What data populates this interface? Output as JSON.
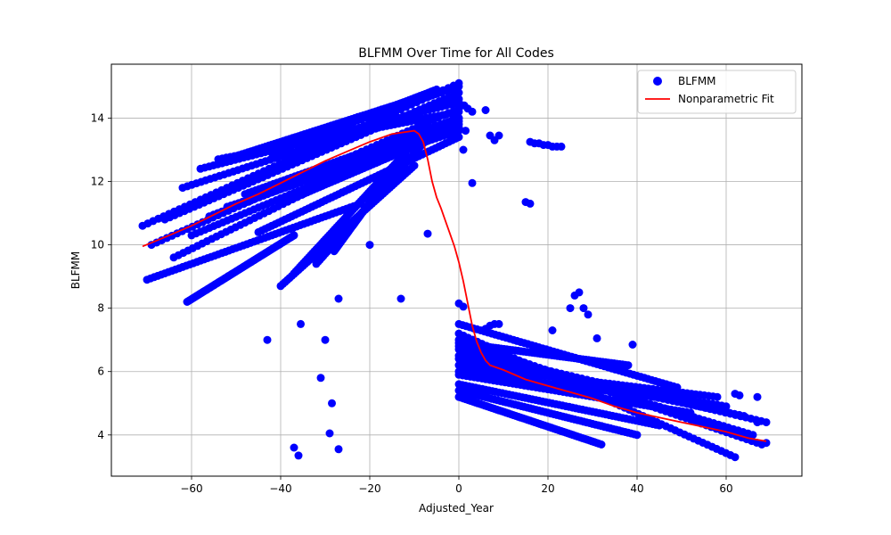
{
  "chart_data": {
    "type": "scatter",
    "title": "BLFMM Over Time for All Codes",
    "xlabel": "Adjusted_Year",
    "ylabel": "BLFMM",
    "xlim": [
      -78,
      77
    ],
    "ylim": [
      2.7,
      15.7
    ],
    "xticks": [
      -60,
      -40,
      -20,
      0,
      20,
      40,
      60
    ],
    "yticks": [
      4,
      6,
      8,
      10,
      12,
      14
    ],
    "grid": true,
    "legend": {
      "position": "top-right",
      "entries": [
        "BLFMM",
        "Nonparametric Fit"
      ]
    },
    "colors": {
      "scatter": "#0000ff",
      "fit": "#ff0000"
    },
    "series": [
      {
        "name": "BLFMM",
        "kind": "scatter",
        "bands_before": [
          {
            "x_start": -71,
            "y_start": 10.6,
            "x_end": 0,
            "y_end": 15.1
          },
          {
            "x_start": -69,
            "y_start": 10.0,
            "x_end": 0,
            "y_end": 14.3
          },
          {
            "x_start": -66,
            "y_start": 10.8,
            "x_end": 0,
            "y_end": 14.8
          },
          {
            "x_start": -64,
            "y_start": 9.6,
            "x_end": 0,
            "y_end": 14.0
          },
          {
            "x_start": -62,
            "y_start": 11.8,
            "x_end": 0,
            "y_end": 14.6
          },
          {
            "x_start": -60,
            "y_start": 10.3,
            "x_end": 0,
            "y_end": 13.8
          },
          {
            "x_start": -58,
            "y_start": 12.4,
            "x_end": 0,
            "y_end": 14.5
          },
          {
            "x_start": -56,
            "y_start": 10.9,
            "x_end": 0,
            "y_end": 13.9
          },
          {
            "x_start": -54,
            "y_start": 12.7,
            "x_end": 0,
            "y_end": 14.2
          },
          {
            "x_start": -52,
            "y_start": 11.2,
            "x_end": 0,
            "y_end": 13.6
          },
          {
            "x_start": -50,
            "y_start": 12.8,
            "x_end": -10,
            "y_end": 14.6
          },
          {
            "x_start": -48,
            "y_start": 11.6,
            "x_end": 0,
            "y_end": 14.0
          },
          {
            "x_start": -45,
            "y_start": 10.4,
            "x_end": 0,
            "y_end": 13.4
          },
          {
            "x_start": -42,
            "y_start": 12.9,
            "x_end": -5,
            "y_end": 14.9
          },
          {
            "x_start": -40,
            "y_start": 11.3,
            "x_end": 0,
            "y_end": 13.7
          },
          {
            "x_start": -36,
            "y_start": 13.3,
            "x_end": 0,
            "y_end": 15.0
          },
          {
            "x_start": -70,
            "y_start": 8.9,
            "x_end": -22,
            "y_end": 11.3
          },
          {
            "x_start": -61,
            "y_start": 8.2,
            "x_end": -37,
            "y_end": 10.3
          },
          {
            "x_start": -40,
            "y_start": 8.7,
            "x_end": -10,
            "y_end": 12.5
          },
          {
            "x_start": -37,
            "y_start": 9.1,
            "x_end": -12,
            "y_end": 12.9
          },
          {
            "x_start": -32,
            "y_start": 9.4,
            "x_end": -8,
            "y_end": 13.2
          },
          {
            "x_start": -28,
            "y_start": 9.8,
            "x_end": -15,
            "y_end": 12.3
          }
        ],
        "bands_after": [
          {
            "x_start": 0,
            "y_start": 7.2,
            "x_end": 62,
            "y_end": 3.3
          },
          {
            "x_start": 0,
            "y_start": 7.0,
            "x_end": 68,
            "y_end": 3.7
          },
          {
            "x_start": 0,
            "y_start": 6.8,
            "x_end": 66,
            "y_end": 4.0
          },
          {
            "x_start": 0,
            "y_start": 6.7,
            "x_end": 69,
            "y_end": 4.4
          },
          {
            "x_start": 0,
            "y_start": 6.5,
            "x_end": 64,
            "y_end": 4.6
          },
          {
            "x_start": 0,
            "y_start": 6.4,
            "x_end": 60,
            "y_end": 4.9
          },
          {
            "x_start": 0,
            "y_start": 6.2,
            "x_end": 58,
            "y_end": 5.2
          },
          {
            "x_start": 0,
            "y_start": 6.0,
            "x_end": 55,
            "y_end": 5.0
          },
          {
            "x_start": 0,
            "y_start": 5.9,
            "x_end": 52,
            "y_end": 4.7
          },
          {
            "x_start": 0,
            "y_start": 7.5,
            "x_end": 49,
            "y_end": 5.5
          },
          {
            "x_start": 0,
            "y_start": 5.6,
            "x_end": 45,
            "y_end": 4.3
          },
          {
            "x_start": 0,
            "y_start": 5.4,
            "x_end": 40,
            "y_end": 4.0
          },
          {
            "x_start": 0,
            "y_start": 5.2,
            "x_end": 32,
            "y_end": 3.7
          },
          {
            "x_start": 0,
            "y_start": 6.9,
            "x_end": 38,
            "y_end": 6.2
          }
        ],
        "points": [
          [
            -43,
            7.0
          ],
          [
            -35.5,
            7.5
          ],
          [
            -30,
            7.0
          ],
          [
            -31,
            5.8
          ],
          [
            -28.5,
            5.0
          ],
          [
            -29,
            4.05
          ],
          [
            -37,
            3.6
          ],
          [
            -36,
            3.35
          ],
          [
            -27,
            3.55
          ],
          [
            -27,
            8.3
          ],
          [
            -13,
            8.3
          ],
          [
            -7,
            10.35
          ],
          [
            -20,
            10.0
          ],
          [
            3,
            11.95
          ],
          [
            1,
            13.0
          ],
          [
            1.5,
            13.6
          ],
          [
            2,
            14.3
          ],
          [
            1.2,
            14.4
          ],
          [
            3,
            14.2
          ],
          [
            6,
            14.25
          ],
          [
            7,
            13.45
          ],
          [
            8,
            13.3
          ],
          [
            9,
            13.45
          ],
          [
            16,
            13.25
          ],
          [
            17,
            13.2
          ],
          [
            18,
            13.2
          ],
          [
            19,
            13.15
          ],
          [
            20,
            13.15
          ],
          [
            21,
            13.1
          ],
          [
            22,
            13.1
          ],
          [
            23,
            13.1
          ],
          [
            15,
            11.35
          ],
          [
            16,
            11.3
          ],
          [
            0,
            8.15
          ],
          [
            1,
            8.05
          ],
          [
            6,
            7.35
          ],
          [
            7,
            7.45
          ],
          [
            8,
            7.5
          ],
          [
            9,
            7.5
          ],
          [
            21,
            7.3
          ],
          [
            25,
            8.0
          ],
          [
            26,
            8.4
          ],
          [
            27,
            8.5
          ],
          [
            28,
            8.0
          ],
          [
            29,
            7.8
          ],
          [
            31,
            7.05
          ],
          [
            39,
            6.85
          ],
          [
            67,
            5.2
          ],
          [
            62,
            5.3
          ],
          [
            63,
            5.25
          ],
          [
            69,
            3.75
          ],
          [
            67,
            4.4
          ]
        ]
      },
      {
        "name": "Nonparametric Fit",
        "kind": "line",
        "points": [
          [
            -71,
            9.95
          ],
          [
            -65,
            10.3
          ],
          [
            -60,
            10.6
          ],
          [
            -55,
            10.95
          ],
          [
            -50,
            11.3
          ],
          [
            -45,
            11.6
          ],
          [
            -40,
            11.95
          ],
          [
            -35,
            12.3
          ],
          [
            -30,
            12.65
          ],
          [
            -25,
            12.95
          ],
          [
            -20,
            13.25
          ],
          [
            -15,
            13.5
          ],
          [
            -10,
            13.6
          ],
          [
            -9,
            13.5
          ],
          [
            -8,
            13.25
          ],
          [
            -7,
            12.7
          ],
          [
            -6,
            12.0
          ],
          [
            -5,
            11.5
          ],
          [
            -4,
            11.15
          ],
          [
            -3,
            10.75
          ],
          [
            -2,
            10.35
          ],
          [
            -1,
            9.95
          ],
          [
            0,
            9.45
          ],
          [
            1,
            8.85
          ],
          [
            2,
            8.15
          ],
          [
            3,
            7.45
          ],
          [
            4,
            6.95
          ],
          [
            5,
            6.6
          ],
          [
            6,
            6.35
          ],
          [
            7,
            6.2
          ],
          [
            10,
            6.05
          ],
          [
            15,
            5.75
          ],
          [
            20,
            5.55
          ],
          [
            25,
            5.35
          ],
          [
            30,
            5.15
          ],
          [
            35,
            4.9
          ],
          [
            40,
            4.7
          ],
          [
            45,
            4.55
          ],
          [
            50,
            4.4
          ],
          [
            55,
            4.25
          ],
          [
            60,
            4.1
          ],
          [
            65,
            3.9
          ],
          [
            69,
            3.8
          ]
        ]
      }
    ]
  }
}
